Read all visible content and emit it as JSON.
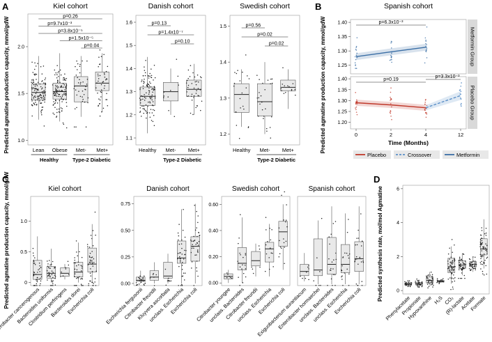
{
  "colors": {
    "box_fill": "#e9e9e9",
    "box_stroke": "#555555",
    "point": "#222222",
    "placebo": "#c0392b",
    "crossover": "#5b8fc7",
    "metformin": "#3a6ea5",
    "strip_fill": "#d9d9d9"
  },
  "panel_letters": [
    "A",
    "B",
    "C",
    "D"
  ],
  "y_label_A": "Predicted agmatine production capacity, mmol/gdW",
  "y_label_B": "Predicted agmatine production capacity, mmol/gdW",
  "y_label_C": "Predicted agmatine production capacity, mmol/gdW",
  "y_label_D": "Predicted synthesis rate, mol/mol Agmatine",
  "panels": [
    {
      "id": "kiel-a",
      "title": "Kiel cohort",
      "ylim": [
        0.95,
        2.35
      ],
      "yticks": [
        "1.0",
        "1.5",
        "2.0"
      ],
      "ytick_values": [
        1.0,
        1.5,
        2.0
      ],
      "categories": [
        "Lean",
        "Obese",
        "Met-",
        "Met+"
      ],
      "groups": [
        {
          "label": "Healthy",
          "from": 0,
          "to": 1
        },
        {
          "label": "Type-2 Diabetic",
          "from": 2,
          "to": 3
        }
      ],
      "boxes": [
        {
          "q1": 1.43,
          "med": 1.51,
          "q3": 1.6,
          "lo": 1.22,
          "hi": 1.9,
          "n": 120
        },
        {
          "q1": 1.44,
          "med": 1.52,
          "q3": 1.61,
          "lo": 1.2,
          "hi": 1.93,
          "n": 120
        },
        {
          "q1": 1.41,
          "med": 1.58,
          "q3": 1.68,
          "lo": 1.25,
          "hi": 1.9,
          "n": 40
        },
        {
          "q1": 1.53,
          "med": 1.61,
          "q3": 1.73,
          "lo": 1.3,
          "hi": 1.93,
          "n": 45
        }
      ],
      "brackets": [
        {
          "from": 0,
          "to": 3,
          "label": "p=0.26"
        },
        {
          "from": 0,
          "to": 2,
          "label": "p=9.7x10⁻³"
        },
        {
          "from": 0,
          "to": 3,
          "label": "p=3.8x10⁻⁵"
        },
        {
          "from": 1,
          "to": 3,
          "label": "p=1.5x10⁻⁵"
        },
        {
          "from": 2,
          "to": 3,
          "label": "p=0.04"
        }
      ]
    },
    {
      "id": "danish-a",
      "title": "Danish cohort",
      "ylim": [
        1.07,
        1.63
      ],
      "yticks": [
        "1.1",
        "1.2",
        "1.3",
        "1.4",
        "1.5",
        "1.6"
      ],
      "ytick_values": [
        1.1,
        1.2,
        1.3,
        1.4,
        1.5,
        1.6
      ],
      "categories": [
        "Healthy",
        "Met-",
        "Met+"
      ],
      "groups": [
        {
          "label": "Type-2 Diabetic",
          "from": 1,
          "to": 2
        }
      ],
      "boxes": [
        {
          "q1": 1.24,
          "med": 1.28,
          "q3": 1.32,
          "lo": 1.12,
          "hi": 1.45,
          "n": 110
        },
        {
          "q1": 1.26,
          "med": 1.3,
          "q3": 1.34,
          "lo": 1.2,
          "hi": 1.4,
          "n": 10
        },
        {
          "q1": 1.28,
          "med": 1.31,
          "q3": 1.35,
          "lo": 1.2,
          "hi": 1.42,
          "n": 40
        }
      ],
      "brackets": [
        {
          "from": 0,
          "to": 1,
          "label": "p=0.13"
        },
        {
          "from": 0,
          "to": 2,
          "label": "p=1.4x10⁻⁷"
        },
        {
          "from": 1,
          "to": 2,
          "label": "p=0.10"
        }
      ]
    },
    {
      "id": "swedish-a",
      "title": "Swedish cohort",
      "ylim": [
        1.17,
        1.53
      ],
      "yticks": [
        "1.2",
        "1.3",
        "1.4",
        "1.5"
      ],
      "ytick_values": [
        1.2,
        1.3,
        1.4,
        1.5
      ],
      "categories": [
        "Healthy",
        "Met-",
        "Met+"
      ],
      "groups": [
        {
          "label": "Type-2 Diabetic",
          "from": 1,
          "to": 2
        }
      ],
      "boxes": [
        {
          "q1": 1.26,
          "med": 1.31,
          "q3": 1.34,
          "lo": 1.22,
          "hi": 1.38,
          "n": 22
        },
        {
          "q1": 1.25,
          "med": 1.29,
          "q3": 1.34,
          "lo": 1.2,
          "hi": 1.4,
          "n": 25
        },
        {
          "q1": 1.32,
          "med": 1.33,
          "q3": 1.35,
          "lo": 1.27,
          "hi": 1.38,
          "n": 14
        }
      ],
      "brackets": [
        {
          "from": 0,
          "to": 1,
          "label": "p=0.56"
        },
        {
          "from": 0,
          "to": 2,
          "label": "p=0.02"
        },
        {
          "from": 1,
          "to": 2,
          "label": "p=0.02"
        }
      ]
    }
  ],
  "spanish": {
    "title": "Spanish cohort",
    "x_label": "Time (Months)",
    "xticks": [
      "0",
      "2",
      "4",
      "12"
    ],
    "top": {
      "strip": "Metformin Group",
      "ylim": [
        1.22,
        1.41
      ],
      "yticks": [
        "1.25",
        "1.30",
        "1.35",
        "1.40"
      ],
      "ytick_values": [
        1.25,
        1.3,
        1.35,
        1.4
      ],
      "line": {
        "x": [
          0,
          2,
          4
        ],
        "y": [
          1.28,
          1.297,
          1.313
        ],
        "band": 0.012
      },
      "bracket": {
        "from": 0,
        "to": 4,
        "label": "p=6.3x10⁻³"
      }
    },
    "bottom": {
      "strip": "Placebo Group",
      "ylim": [
        1.17,
        1.41
      ],
      "yticks": [
        "1.20",
        "1.25",
        "1.30",
        "1.35",
        "1.40"
      ],
      "ytick_values": [
        1.2,
        1.25,
        1.3,
        1.35,
        1.4
      ],
      "line": {
        "x": [
          0,
          2,
          4
        ],
        "y": [
          1.29,
          1.28,
          1.267
        ],
        "band": 0.014
      },
      "crossover": {
        "x": [
          4,
          12
        ],
        "y": [
          1.267,
          1.323
        ]
      },
      "bracket": {
        "from": 0,
        "to": 4,
        "label": "p=0.19"
      },
      "bracket2": {
        "label": "p=3.3x10⁻³"
      }
    },
    "legend": [
      {
        "label": "Placebo",
        "color": "#c0392b",
        "dash": false
      },
      {
        "label": "Crossover",
        "color": "#5b8fc7",
        "dash": true
      },
      {
        "label": "Metformin",
        "color": "#3a6ea5",
        "dash": false
      }
    ]
  },
  "panels_c": [
    {
      "id": "kiel-c",
      "title": "Kiel cohort",
      "ylim": [
        -0.05,
        1.4
      ],
      "yticks": [
        "0",
        "0.5",
        "1.0"
      ],
      "ytick_values": [
        0,
        0.5,
        1.0
      ],
      "categories": [
        "Enterobacter cancerogenous",
        "Bacteroides uniformis",
        "Clostridium perfringens",
        "Bacteroides dorei",
        "Escherichia coli"
      ],
      "boxes": [
        {
          "q1": 0.05,
          "med": 0.13,
          "q3": 0.36,
          "lo": 0.0,
          "hi": 0.75,
          "n": 40
        },
        {
          "q1": 0.07,
          "med": 0.15,
          "q3": 0.26,
          "lo": 0.0,
          "hi": 0.55,
          "n": 40
        },
        {
          "q1": 0.1,
          "med": 0.15,
          "q3": 0.24,
          "lo": 0.05,
          "hi": 0.3,
          "n": 8
        },
        {
          "q1": 0.09,
          "med": 0.17,
          "q3": 0.33,
          "lo": 0.0,
          "hi": 0.65,
          "n": 35
        },
        {
          "q1": 0.17,
          "med": 0.3,
          "q3": 0.56,
          "lo": 0.0,
          "hi": 0.95,
          "n": 45
        }
      ]
    },
    {
      "id": "danish-c",
      "title": "Danish cohort",
      "ylim": [
        -0.02,
        0.82
      ],
      "yticks": [
        "0.00",
        "0.25",
        "0.50",
        "0.75"
      ],
      "ytick_values": [
        0,
        0.25,
        0.5,
        0.75
      ],
      "categories": [
        "Escherichia fergusonii",
        "Citrobacter freundii",
        "Kluyvera ascorbata",
        "unclass. Escherichia",
        "Escherichia coli"
      ],
      "boxes": [
        {
          "q1": 0.02,
          "med": 0.03,
          "q3": 0.06,
          "lo": 0.0,
          "hi": 0.12,
          "n": 25
        },
        {
          "q1": 0.03,
          "med": 0.06,
          "q3": 0.12,
          "lo": 0.0,
          "hi": 0.2,
          "n": 6
        },
        {
          "q1": 0.05,
          "med": 0.07,
          "q3": 0.2,
          "lo": 0.0,
          "hi": 0.28,
          "n": 8
        },
        {
          "q1": 0.19,
          "med": 0.24,
          "q3": 0.4,
          "lo": 0.0,
          "hi": 0.7,
          "n": 40
        },
        {
          "q1": 0.21,
          "med": 0.35,
          "q3": 0.44,
          "lo": 0.0,
          "hi": 0.75,
          "n": 40
        }
      ]
    },
    {
      "id": "swedish-c",
      "title": "Swedish cohort",
      "ylim": [
        -0.02,
        0.66
      ],
      "yticks": [
        "0.00",
        "0.20",
        "0.40",
        "0.60"
      ],
      "ytick_values": [
        0,
        0.2,
        0.4,
        0.6
      ],
      "categories": [
        "Citrobacter youngee",
        "unclass. Bacteroides",
        "Citrobacter freundii",
        "unclass. Escherichia",
        "Escherichia coli"
      ],
      "boxes": [
        {
          "q1": 0.03,
          "med": 0.05,
          "q3": 0.07,
          "lo": 0.0,
          "hi": 0.1,
          "n": 6
        },
        {
          "q1": 0.1,
          "med": 0.15,
          "q3": 0.27,
          "lo": 0.0,
          "hi": 0.5,
          "n": 20
        },
        {
          "q1": 0.13,
          "med": 0.17,
          "q3": 0.24,
          "lo": 0.05,
          "hi": 0.3,
          "n": 6
        },
        {
          "q1": 0.16,
          "med": 0.26,
          "q3": 0.31,
          "lo": 0.05,
          "hi": 0.45,
          "n": 15
        },
        {
          "q1": 0.28,
          "med": 0.39,
          "q3": 0.47,
          "lo": 0.1,
          "hi": 0.6,
          "n": 18
        }
      ]
    },
    {
      "id": "spanish-c",
      "title": "Spanish cohort",
      "ylim": [
        -0.01,
        0.62
      ],
      "yticks": [],
      "ytick_values": [],
      "categories": [
        "Exiguobacterium aurantiacum",
        "Enterobacter hormaechei",
        "unclass. Bacteroides",
        "unclass. Escherichia",
        "Escherichia coli"
      ],
      "boxes": [
        {
          "q1": 0.06,
          "med": 0.09,
          "q3": 0.14,
          "lo": 0.02,
          "hi": 0.22,
          "n": 8
        },
        {
          "q1": 0.06,
          "med": 0.1,
          "q3": 0.32,
          "lo": 0.0,
          "hi": 0.45,
          "n": 8
        },
        {
          "q1": 0.07,
          "med": 0.14,
          "q3": 0.33,
          "lo": 0.0,
          "hi": 0.55,
          "n": 20
        },
        {
          "q1": 0.08,
          "med": 0.14,
          "q3": 0.28,
          "lo": 0.0,
          "hi": 0.5,
          "n": 20
        },
        {
          "q1": 0.09,
          "med": 0.18,
          "q3": 0.3,
          "lo": 0.0,
          "hi": 0.55,
          "n": 25
        }
      ]
    }
  ],
  "panel_d": {
    "ylim": [
      -0.2,
      6.2
    ],
    "yticks": [
      "0",
      "2",
      "4",
      "6"
    ],
    "ytick_values": [
      0,
      2,
      4,
      6
    ],
    "categories": [
      "Phenylacetate",
      "Propionate",
      "Hypoxanthine",
      "H₂S",
      "CO₂",
      "(R)-lactate",
      "Acetate",
      "Formate"
    ],
    "boxes": [
      {
        "q1": 0.32,
        "med": 0.38,
        "q3": 0.45,
        "lo": 0.25,
        "hi": 0.55,
        "n": 30
      },
      {
        "q1": 0.33,
        "med": 0.4,
        "q3": 0.48,
        "lo": 0.25,
        "hi": 0.6,
        "n": 30
      },
      {
        "q1": 0.45,
        "med": 0.6,
        "q3": 0.8,
        "lo": 0.3,
        "hi": 1.1,
        "n": 35
      },
      {
        "q1": 0.5,
        "med": 0.55,
        "q3": 0.6,
        "lo": 0.45,
        "hi": 0.65,
        "n": 20
      },
      {
        "q1": 1.05,
        "med": 1.4,
        "q3": 1.9,
        "lo": 0.4,
        "hi": 2.6,
        "n": 60
      },
      {
        "q1": 1.3,
        "med": 1.5,
        "q3": 1.75,
        "lo": 0.9,
        "hi": 2.2,
        "n": 45
      },
      {
        "q1": 1.4,
        "med": 1.55,
        "q3": 1.7,
        "lo": 1.1,
        "hi": 2.0,
        "n": 40
      },
      {
        "q1": 2.1,
        "med": 2.45,
        "q3": 3.05,
        "lo": 1.3,
        "hi": 4.2,
        "n": 60
      }
    ]
  }
}
